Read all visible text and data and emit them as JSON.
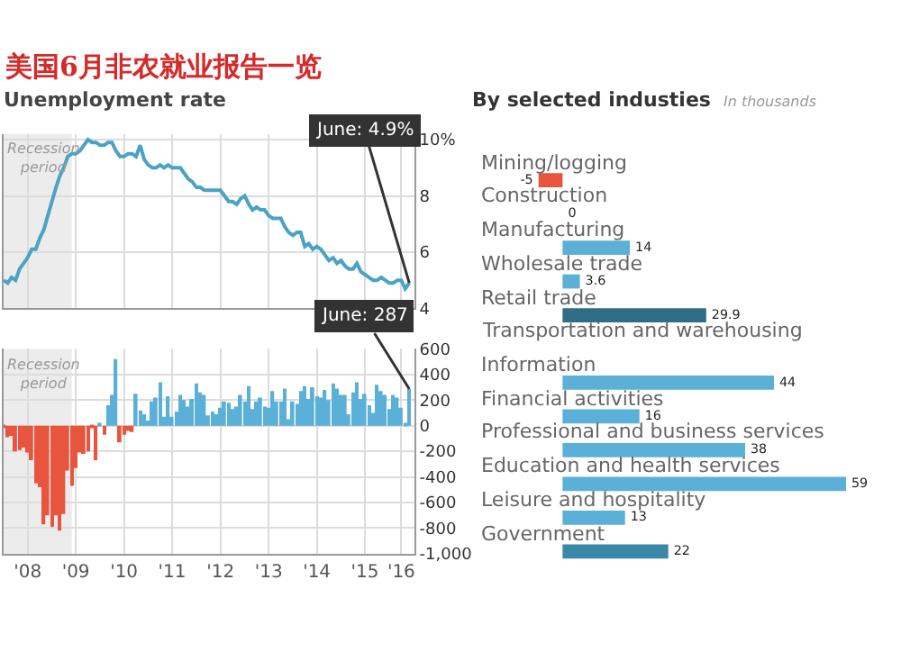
{
  "chart_data": [
    {
      "type": "line",
      "title": "美国6月非农就业报告一览",
      "subtitle": "Unemployment rate",
      "x": [
        "2008-01",
        "2008-02",
        "2008-03",
        "2008-04",
        "2008-05",
        "2008-06",
        "2008-07",
        "2008-08",
        "2008-09",
        "2008-10",
        "2008-11",
        "2008-12",
        "2009-01",
        "2009-02",
        "2009-03",
        "2009-04",
        "2009-05",
        "2009-06",
        "2009-07",
        "2009-08",
        "2009-09",
        "2009-10",
        "2009-11",
        "2009-12",
        "2010-01",
        "2010-02",
        "2010-03",
        "2010-04",
        "2010-05",
        "2010-06",
        "2010-07",
        "2010-08",
        "2010-09",
        "2010-10",
        "2010-11",
        "2010-12",
        "2011-01",
        "2011-02",
        "2011-03",
        "2011-04",
        "2011-05",
        "2011-06",
        "2011-07",
        "2011-08",
        "2011-09",
        "2011-10",
        "2011-11",
        "2011-12",
        "2012-01",
        "2012-02",
        "2012-03",
        "2012-04",
        "2012-05",
        "2012-06",
        "2012-07",
        "2012-08",
        "2012-09",
        "2012-10",
        "2012-11",
        "2012-12",
        "2013-01",
        "2013-02",
        "2013-03",
        "2013-04",
        "2013-05",
        "2013-06",
        "2013-07",
        "2013-08",
        "2013-09",
        "2013-10",
        "2013-11",
        "2013-12",
        "2014-01",
        "2014-02",
        "2014-03",
        "2014-04",
        "2014-05",
        "2014-06",
        "2014-07",
        "2014-08",
        "2014-09",
        "2014-10",
        "2014-11",
        "2014-12",
        "2015-01",
        "2015-02",
        "2015-03",
        "2015-04",
        "2015-05",
        "2015-06",
        "2015-07",
        "2015-08",
        "2015-09",
        "2015-10",
        "2015-11",
        "2015-12",
        "2016-01",
        "2016-02",
        "2016-03",
        "2016-04",
        "2016-05",
        "2016-06"
      ],
      "series": [
        {
          "color": "#4aa3c4",
          "values": [
            5.0,
            4.9,
            5.1,
            5.0,
            5.4,
            5.6,
            5.8,
            6.1,
            6.1,
            6.5,
            6.8,
            7.3,
            7.8,
            8.3,
            8.7,
            9.0,
            9.4,
            9.5,
            9.5,
            9.6,
            9.8,
            10.0,
            9.9,
            9.9,
            9.8,
            9.8,
            9.9,
            9.9,
            9.6,
            9.4,
            9.4,
            9.5,
            9.5,
            9.4,
            9.8,
            9.3,
            9.1,
            9.0,
            9.0,
            9.1,
            9.0,
            9.1,
            9.0,
            9.0,
            9.0,
            8.8,
            8.6,
            8.5,
            8.3,
            8.3,
            8.2,
            8.2,
            8.2,
            8.2,
            8.2,
            8.0,
            7.8,
            7.8,
            7.7,
            7.9,
            8.0,
            7.7,
            7.5,
            7.6,
            7.5,
            7.5,
            7.3,
            7.2,
            7.2,
            7.2,
            6.9,
            6.7,
            6.6,
            6.7,
            6.7,
            6.2,
            6.3,
            6.1,
            6.2,
            6.1,
            5.9,
            5.7,
            5.8,
            5.6,
            5.7,
            5.5,
            5.4,
            5.4,
            5.6,
            5.3,
            5.2,
            5.1,
            5.0,
            5.0,
            5.1,
            5.0,
            4.9,
            4.9,
            5.0,
            5.0,
            4.7,
            4.9
          ]
        }
      ],
      "xlim": [
        "2008-01-01",
        "2016-07-10"
      ],
      "xticks": [
        {
          "value": "2008-07-01",
          "label": null
        },
        {
          "value": "2009-07-01",
          "label": null
        },
        {
          "value": "2010-07-01",
          "label": null
        },
        {
          "value": "2011-07-01",
          "label": null
        },
        {
          "value": "2012-07-01",
          "label": null
        },
        {
          "value": "2013-07-01",
          "label": null
        },
        {
          "value": "2014-07-01",
          "label": null
        },
        {
          "value": "2015-07-01",
          "label": null
        },
        {
          "value": "2016-04-01",
          "label": null
        }
      ],
      "ylim": [
        4,
        10.2
      ],
      "yticks": [
        4,
        6,
        8,
        {
          "value": 10,
          "label": "10%"
        }
      ],
      "tick_labels": "y",
      "grid": true,
      "bands": [
        {
          "axis": "x",
          "from": "2008-01",
          "to": "2009-06",
          "label": "Recession period",
          "color": "#ececec"
        }
      ],
      "annotations": [
        {
          "text": "June: 4.9%",
          "x": "2016-06",
          "y": 4.9
        }
      ]
    },
    {
      "type": "bar",
      "x": [
        "2008-01",
        "2008-02",
        "2008-03",
        "2008-04",
        "2008-05",
        "2008-06",
        "2008-07",
        "2008-08",
        "2008-09",
        "2008-10",
        "2008-11",
        "2008-12",
        "2009-01",
        "2009-02",
        "2009-03",
        "2009-04",
        "2009-05",
        "2009-06",
        "2009-07",
        "2009-08",
        "2009-09",
        "2009-10",
        "2009-11",
        "2009-12",
        "2010-01",
        "2010-02",
        "2010-03",
        "2010-04",
        "2010-05",
        "2010-06",
        "2010-07",
        "2010-08",
        "2010-09",
        "2010-10",
        "2010-11",
        "2010-12",
        "2011-01",
        "2011-02",
        "2011-03",
        "2011-04",
        "2011-05",
        "2011-06",
        "2011-07",
        "2011-08",
        "2011-09",
        "2011-10",
        "2011-11",
        "2011-12",
        "2012-01",
        "2012-02",
        "2012-03",
        "2012-04",
        "2012-05",
        "2012-06",
        "2012-07",
        "2012-08",
        "2012-09",
        "2012-10",
        "2012-11",
        "2012-12",
        "2013-01",
        "2013-02",
        "2013-03",
        "2013-04",
        "2013-05",
        "2013-06",
        "2013-07",
        "2013-08",
        "2013-09",
        "2013-10",
        "2013-11",
        "2013-12",
        "2014-01",
        "2014-02",
        "2014-03",
        "2014-04",
        "2014-05",
        "2014-06",
        "2014-07",
        "2014-08",
        "2014-09",
        "2014-10",
        "2014-11",
        "2014-12",
        "2015-01",
        "2015-02",
        "2015-03",
        "2015-04",
        "2015-05",
        "2015-06",
        "2015-07",
        "2015-08",
        "2015-09",
        "2015-10",
        "2015-11",
        "2015-12",
        "2016-01",
        "2016-02",
        "2016-03",
        "2016-04",
        "2016-05",
        "2016-06"
      ],
      "values": [
        -10,
        -90,
        -80,
        -200,
        -190,
        -170,
        -210,
        -270,
        -450,
        -480,
        -770,
        -700,
        -790,
        -700,
        -820,
        -690,
        -350,
        -470,
        -330,
        -210,
        -220,
        -200,
        -10,
        -270,
        20,
        -70,
        160,
        240,
        520,
        -130,
        -70,
        -40,
        -50,
        250,
        120,
        90,
        40,
        190,
        220,
        340,
        70,
        230,
        70,
        110,
        240,
        200,
        150,
        210,
        330,
        260,
        240,
        80,
        110,
        90,
        140,
        190,
        180,
        130,
        150,
        240,
        190,
        310,
        130,
        190,
        220,
        150,
        140,
        270,
        190,
        190,
        290,
        50,
        190,
        170,
        270,
        310,
        210,
        300,
        230,
        220,
        280,
        200,
        330,
        290,
        240,
        240,
        90,
        260,
        340,
        210,
        250,
        160,
        100,
        320,
        270,
        240,
        130,
        240,
        220,
        140,
        20,
        287
      ],
      "colors": [
        "#e8553e",
        "#e8553e",
        "#e8553e",
        "#e8553e",
        "#e8553e",
        "#e8553e",
        "#e8553e",
        "#e8553e",
        "#e8553e",
        "#e8553e",
        "#e8553e",
        "#e8553e",
        "#e8553e",
        "#e8553e",
        "#e8553e",
        "#e8553e",
        "#e8553e",
        "#e8553e",
        "#e8553e",
        "#e8553e",
        "#e8553e",
        "#e8553e",
        "#e8553e",
        "#e8553e",
        "#5ab0d6",
        "#e8553e",
        "#5ab0d6",
        "#5ab0d6",
        "#5ab0d6",
        "#e8553e",
        "#e8553e",
        "#e8553e",
        "#e8553e",
        "#5ab0d6",
        "#5ab0d6",
        "#5ab0d6",
        "#5ab0d6",
        "#5ab0d6",
        "#5ab0d6",
        "#5ab0d6",
        "#5ab0d6",
        "#5ab0d6",
        "#5ab0d6",
        "#5ab0d6",
        "#5ab0d6",
        "#5ab0d6",
        "#5ab0d6",
        "#5ab0d6",
        "#5ab0d6",
        "#5ab0d6",
        "#5ab0d6",
        "#5ab0d6",
        "#5ab0d6",
        "#5ab0d6",
        "#5ab0d6",
        "#5ab0d6",
        "#5ab0d6",
        "#5ab0d6",
        "#5ab0d6",
        "#5ab0d6",
        "#5ab0d6",
        "#5ab0d6",
        "#5ab0d6",
        "#5ab0d6",
        "#5ab0d6",
        "#5ab0d6",
        "#5ab0d6",
        "#5ab0d6",
        "#5ab0d6",
        "#5ab0d6",
        "#5ab0d6",
        "#5ab0d6",
        "#5ab0d6",
        "#5ab0d6",
        "#5ab0d6",
        "#5ab0d6",
        "#5ab0d6",
        "#5ab0d6",
        "#5ab0d6",
        "#5ab0d6",
        "#5ab0d6",
        "#5ab0d6",
        "#5ab0d6",
        "#5ab0d6",
        "#5ab0d6",
        "#5ab0d6",
        "#5ab0d6",
        "#5ab0d6",
        "#5ab0d6",
        "#5ab0d6",
        "#5ab0d6",
        "#5ab0d6",
        "#5ab0d6",
        "#5ab0d6",
        "#5ab0d6",
        "#5ab0d6",
        "#5ab0d6",
        "#5ab0d6",
        "#5ab0d6",
        "#5ab0d6",
        "#5ab0d6",
        "#5ab0d6"
      ],
      "xlim": [
        "2008-01-01",
        "2016-07-10"
      ],
      "xticks": [
        {
          "value": "2008-07-01",
          "label": "'08"
        },
        {
          "value": "2009-07-01",
          "label": "'09"
        },
        {
          "value": "2010-07-01",
          "label": "'10"
        },
        {
          "value": "2011-07-01",
          "label": "'11"
        },
        {
          "value": "2012-07-01",
          "label": "'12"
        },
        {
          "value": "2013-07-01",
          "label": "'13"
        },
        {
          "value": "2014-07-01",
          "label": "'14"
        },
        {
          "value": "2015-07-01",
          "label": "'15"
        },
        {
          "value": "2016-04-01",
          "label": "'16"
        }
      ],
      "ylim": [
        -1000,
        600
      ],
      "yticks": [
        {
          "value": -1000,
          "label": "-1,000"
        },
        -800,
        -600,
        -400,
        -200,
        0,
        200,
        400,
        600
      ],
      "grid": true,
      "bands": [
        {
          "axis": "x",
          "from": "2008-01",
          "to": "2009-06",
          "label": "Recession period",
          "color": "#ececec"
        }
      ],
      "annotations": [
        {
          "text": "June: 287",
          "x": "2016-06",
          "y": 287
        }
      ]
    },
    {
      "type": "bar",
      "orientation": "horizontal",
      "title": "By selected industies",
      "subtitle": "In thousands",
      "categories": [
        "Mining/logging",
        "Construction",
        "Manufacturing",
        "Wholesale trade",
        "Retail trade",
        "Transportation and warehousing",
        "Information",
        "Financial activities",
        "Professional and business services",
        "Education and health services",
        "Leisure and hospitality",
        "Government"
      ],
      "values": [
        -5,
        0,
        14,
        3.6,
        29.9,
        null,
        44,
        16,
        38,
        59,
        13,
        22
      ],
      "colors": [
        "#e8553e",
        "#5ab0d6",
        "#5ab0d6",
        "#5ab0d6",
        "#2f6d86",
        "#e8553e",
        "#5ab0d6",
        "#5ab0d6",
        "#5ab0d6",
        "#5ab0d6",
        "#5ab0d6",
        "#3a88a8"
      ],
      "data_labels": true
    }
  ]
}
